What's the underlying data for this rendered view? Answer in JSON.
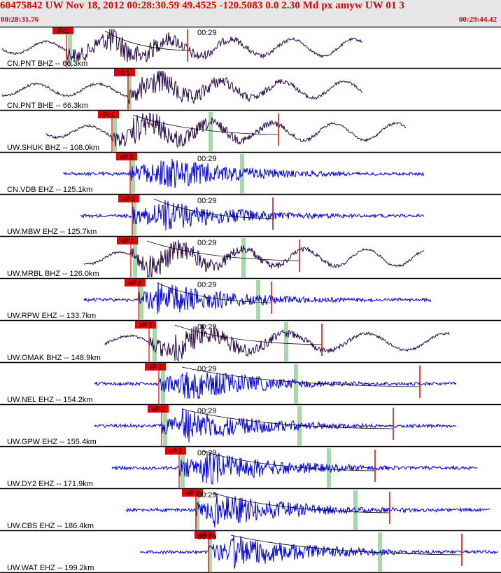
{
  "header": {
    "title": "60475842 UW Nov 18, 2012 00:28:30.59    49.4525 -120.5083  0.0 2.30 Md px amyw UW 01   3",
    "start_time": "00:28:31.76",
    "end_time": "00:29:44.42"
  },
  "colors": {
    "header_bg": "#e6e6e6",
    "header_text": "#d40000",
    "trace_broadband": "#2a0a4a",
    "trace_short_period": "#0000e6",
    "pick_box": "#e60000",
    "arrival_band": "#a8d8a8",
    "coda_curve": "#000000"
  },
  "panels": [
    {
      "label": "CN.PNT BHZ -- 66.3km",
      "pick": "iPc1",
      "minute": "00:29",
      "type": "broadband"
    },
    {
      "label": "CN.PNT BHE -- 66.3km",
      "pick": "iS 1",
      "minute": "",
      "type": "broadband"
    },
    {
      "label": "UW.SHUK BHZ -- 108.0km",
      "pick": "iPc1",
      "minute": "",
      "type": "broadband"
    },
    {
      "label": "CN.VDB EHZ -- 125.1km",
      "pick": "eP 2",
      "minute": "00:29",
      "type": "short_period"
    },
    {
      "label": "UW.MBW EHZ -- 125.7km",
      "pick": "eP 2",
      "minute": "00:29",
      "type": "short_period"
    },
    {
      "label": "UW.MRBL BHZ -- 126.0km",
      "pick": "eP 2",
      "minute": "00:29",
      "type": "broadband"
    },
    {
      "label": "UW.RPW EHZ -- 133.7km",
      "pick": "eP 2",
      "minute": "00:29",
      "type": "short_period"
    },
    {
      "label": "UW.OMAK BHZ -- 148.9km",
      "pick": "eP 2",
      "minute": "00:29",
      "type": "broadband"
    },
    {
      "label": "UW.NEL EHZ -- 154.2km",
      "pick": "eP 2",
      "minute": "00:29",
      "type": "short_period"
    },
    {
      "label": "UW.GPW EHZ -- 155.4km",
      "pick": "eP 2",
      "minute": "00:29",
      "type": "short_period"
    },
    {
      "label": "UW.DY2 EHZ -- 171.9km",
      "pick": "eP 2",
      "minute": "00:29",
      "type": "short_period"
    },
    {
      "label": "UW.CBS EHZ -- 186.4km",
      "pick": "eP 3",
      "minute": "00:29",
      "type": "short_period"
    },
    {
      "label": "UW.WAT EHZ -- 199.2km",
      "pick": "eP 2",
      "minute": "00:29",
      "type": "short_period"
    }
  ]
}
